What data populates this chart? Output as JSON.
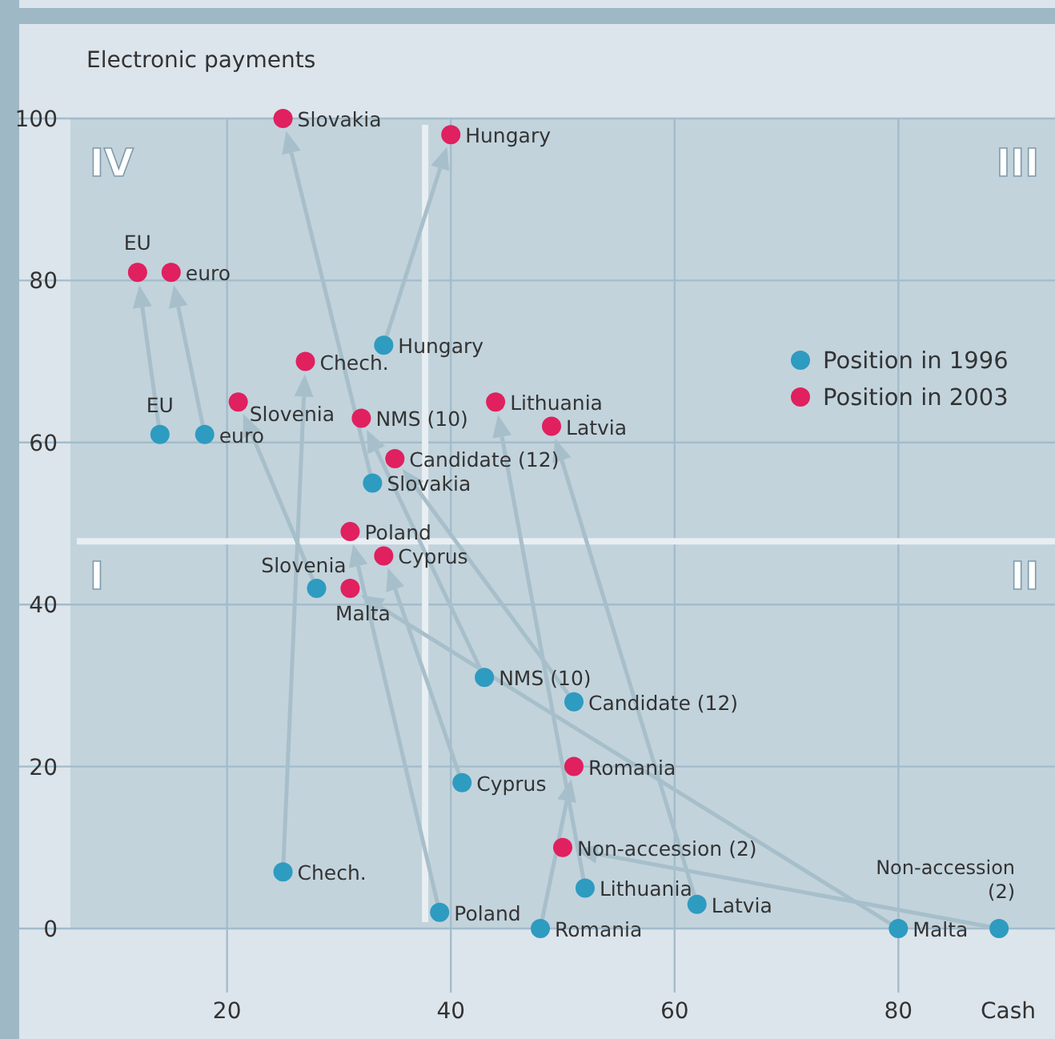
{
  "chart_data": {
    "type": "scatter",
    "ylabel": "Electronic payments",
    "xlabel": "Cash",
    "series": [
      {
        "name": "Position in 1996",
        "color": "#2e9bc0",
        "x": [
          14,
          18,
          34,
          33,
          28,
          25,
          39,
          41,
          43,
          51,
          48,
          52,
          62,
          80,
          89
        ],
        "values": [
          61,
          61,
          72,
          55,
          42,
          7,
          2,
          18,
          31,
          28,
          0,
          5,
          3,
          0,
          0
        ]
      },
      {
        "name": "Position in 2003",
        "color": "#e0205f",
        "x": [
          12,
          15,
          40,
          25,
          21,
          27,
          31,
          34,
          32,
          35,
          51,
          44,
          49,
          31,
          50
        ],
        "values": [
          81,
          81,
          98,
          100,
          65,
          70,
          49,
          46,
          63,
          58,
          20,
          65,
          62,
          42,
          10
        ]
      }
    ],
    "xlim": [
      6,
      94
    ],
    "xticks": [
      20,
      40,
      60,
      80
    ],
    "ylim": [
      0,
      100
    ],
    "yticks": [
      0,
      20,
      40,
      60,
      80,
      100
    ],
    "ref_lines": [
      {
        "axis": "x",
        "value": 37.7,
        "color": "#e8eef2"
      },
      {
        "axis": "y",
        "value": 47.8,
        "color": "#e8eef2"
      }
    ],
    "annotations": [
      "IV",
      "III",
      "I",
      "II",
      {
        "text": "EU",
        "x": 14,
        "y": 61
      },
      {
        "text": "euro",
        "x": 18,
        "y": 61
      },
      {
        "text": "Hungary",
        "x": 34,
        "y": 72
      },
      {
        "text": "Slovakia",
        "x": 33,
        "y": 55
      },
      {
        "text": "Slovenia",
        "x": 28,
        "y": 42
      },
      {
        "text": "Chech.",
        "x": 25,
        "y": 7
      },
      {
        "text": "Poland",
        "x": 39,
        "y": 2
      },
      {
        "text": "Cyprus",
        "x": 41,
        "y": 18
      },
      {
        "text": "NMS (10)",
        "x": 43,
        "y": 31
      },
      {
        "text": "Candidate (12)",
        "x": 51,
        "y": 28
      },
      {
        "text": "Romania",
        "x": 48,
        "y": 0
      },
      {
        "text": "Lithuania",
        "x": 52,
        "y": 5
      },
      {
        "text": "Latvia",
        "x": 62,
        "y": 3
      },
      {
        "text": "Malta",
        "x": 80,
        "y": 0
      },
      {
        "text": "Non-accession (2)",
        "x": 89,
        "y": 0
      },
      {
        "text": "EU",
        "x": 12,
        "y": 81
      },
      {
        "text": "euro",
        "x": 15,
        "y": 81
      },
      {
        "text": "Hungary",
        "x": 40,
        "y": 98
      },
      {
        "text": "Slovakia",
        "x": 25,
        "y": 100
      },
      {
        "text": "Slovenia",
        "x": 21,
        "y": 65
      },
      {
        "text": "Chech.",
        "x": 27,
        "y": 70
      },
      {
        "text": "Poland",
        "x": 31,
        "y": 49
      },
      {
        "text": "Cyprus",
        "x": 34,
        "y": 46
      },
      {
        "text": "NMS (10)",
        "x": 32,
        "y": 63
      },
      {
        "text": "Candidate (12)",
        "x": 35,
        "y": 58
      },
      {
        "text": "Romania",
        "x": 51,
        "y": 20
      },
      {
        "text": "Lithuania",
        "x": 44,
        "y": 65
      },
      {
        "text": "Latvia",
        "x": 49,
        "y": 62
      },
      {
        "text": "Malta",
        "x": 31,
        "y": 42
      },
      {
        "text": "Non-accession (2)",
        "x": 50,
        "y": 10
      }
    ],
    "grid": true,
    "legend": "right",
    "marker": "circle"
  }
}
